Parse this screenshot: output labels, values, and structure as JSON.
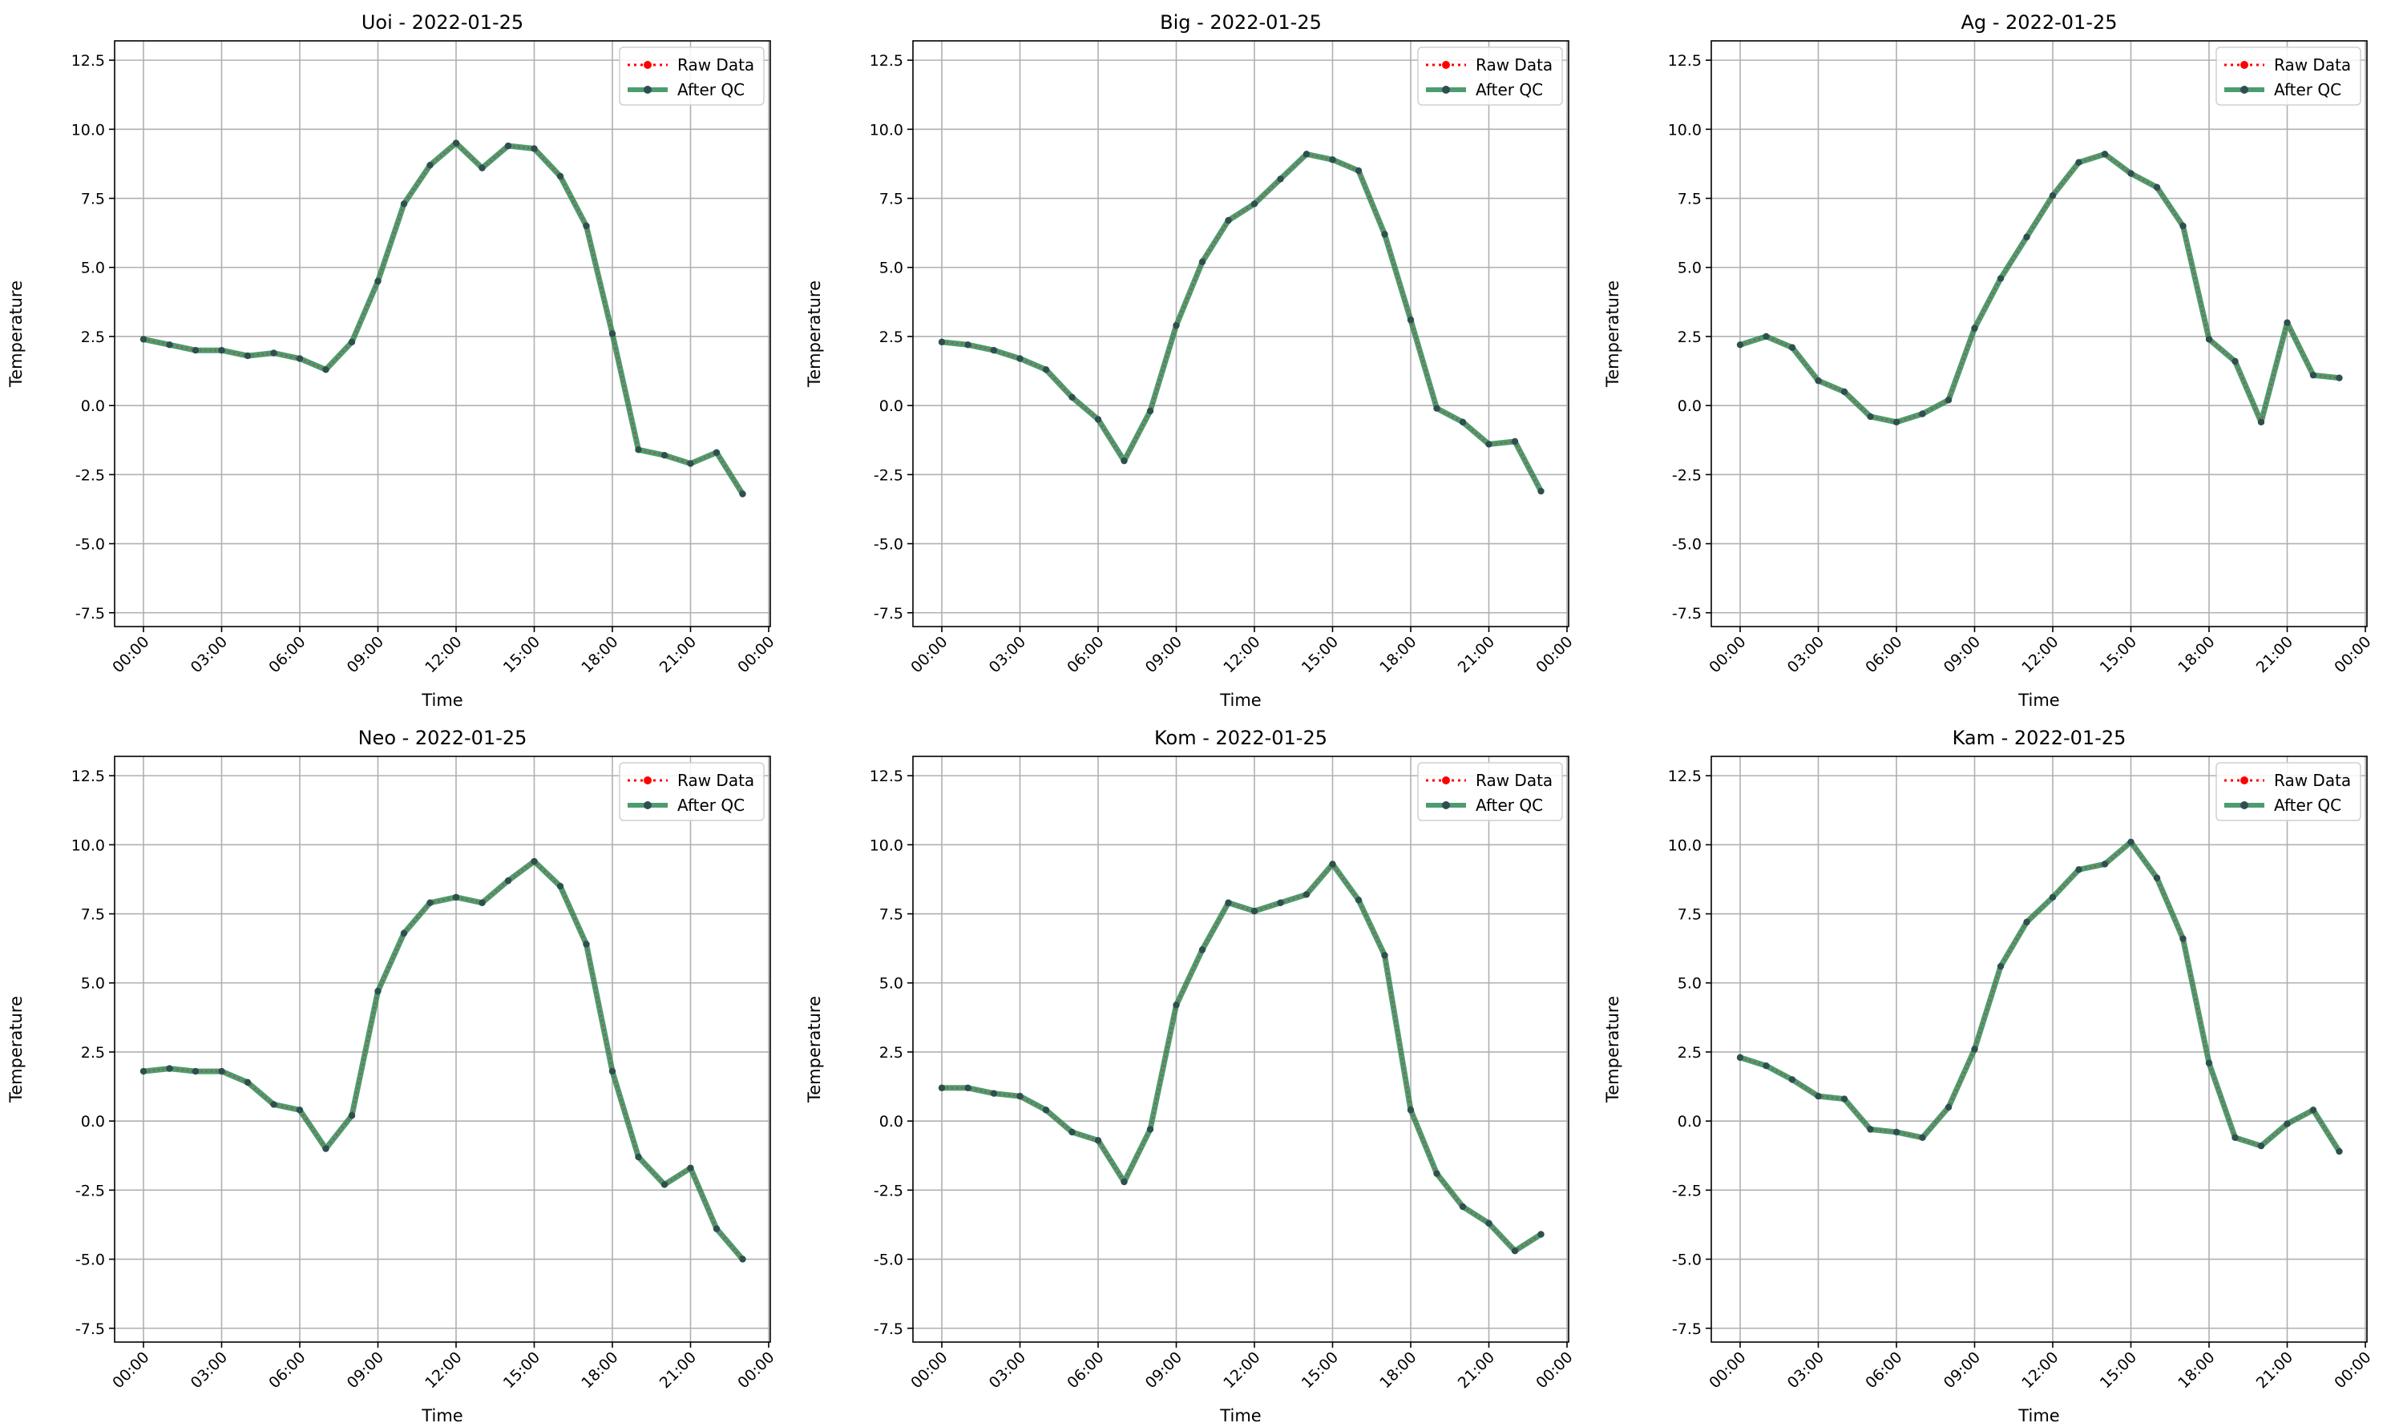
{
  "colors": {
    "raw": "#ff0000",
    "qc": "#2e8b57",
    "grid": "#b0b0b0",
    "axes": "#000000",
    "marker": "#2f4f4f"
  },
  "chart_data": [
    {
      "type": "line",
      "title": "Uoi - 2022-01-25",
      "xlabel": "Time",
      "ylabel": "Temperature",
      "ylim": [
        -8.0,
        13.2
      ],
      "yticks": [
        "-7.5",
        "-5.0",
        "-2.5",
        "0.0",
        "2.5",
        "5.0",
        "7.5",
        "10.0",
        "12.5"
      ],
      "xticks": [
        "00:00",
        "03:00",
        "06:00",
        "09:00",
        "12:00",
        "15:00",
        "18:00",
        "21:00",
        "00:00"
      ],
      "grid": true,
      "legend_position": "upper right",
      "x": [
        "00:00",
        "01:00",
        "02:00",
        "03:00",
        "04:00",
        "05:00",
        "06:00",
        "07:00",
        "08:00",
        "09:00",
        "10:00",
        "11:00",
        "12:00",
        "13:00",
        "14:00",
        "15:00",
        "16:00",
        "17:00",
        "18:00",
        "19:00",
        "20:00",
        "21:00",
        "22:00",
        "23:00"
      ],
      "series": [
        {
          "name": "Raw Data",
          "values": [
            2.4,
            2.2,
            2.0,
            2.0,
            1.8,
            1.9,
            1.7,
            1.3,
            2.3,
            4.5,
            7.3,
            8.7,
            9.5,
            8.6,
            9.4,
            9.3,
            8.3,
            6.5,
            2.6,
            -1.6,
            -1.8,
            -2.1,
            -1.7,
            -3.2
          ]
        },
        {
          "name": "After QC",
          "values": [
            2.4,
            2.2,
            2.0,
            2.0,
            1.8,
            1.9,
            1.7,
            1.3,
            2.3,
            4.5,
            7.3,
            8.7,
            9.5,
            8.6,
            9.4,
            9.3,
            8.3,
            6.5,
            2.6,
            -1.6,
            -1.8,
            -2.1,
            -1.7,
            -3.2
          ]
        }
      ]
    },
    {
      "type": "line",
      "title": "Big - 2022-01-25",
      "xlabel": "Time",
      "ylabel": "Temperature",
      "ylim": [
        -8.0,
        13.2
      ],
      "yticks": [
        "-7.5",
        "-5.0",
        "-2.5",
        "0.0",
        "2.5",
        "5.0",
        "7.5",
        "10.0",
        "12.5"
      ],
      "xticks": [
        "00:00",
        "03:00",
        "06:00",
        "09:00",
        "12:00",
        "15:00",
        "18:00",
        "21:00",
        "00:00"
      ],
      "grid": true,
      "legend_position": "upper right",
      "x": [
        "00:00",
        "01:00",
        "02:00",
        "03:00",
        "04:00",
        "05:00",
        "06:00",
        "07:00",
        "08:00",
        "09:00",
        "10:00",
        "11:00",
        "12:00",
        "13:00",
        "14:00",
        "15:00",
        "16:00",
        "17:00",
        "18:00",
        "19:00",
        "20:00",
        "21:00",
        "22:00",
        "23:00"
      ],
      "series": [
        {
          "name": "Raw Data",
          "values": [
            2.3,
            2.2,
            2.0,
            1.7,
            1.3,
            0.3,
            -0.5,
            -2.0,
            -0.2,
            2.9,
            5.2,
            6.7,
            7.3,
            8.2,
            9.1,
            8.9,
            8.5,
            6.2,
            3.1,
            -0.1,
            -0.6,
            -1.4,
            -1.3,
            -3.1
          ]
        },
        {
          "name": "After QC",
          "values": [
            2.3,
            2.2,
            2.0,
            1.7,
            1.3,
            0.3,
            -0.5,
            -2.0,
            -0.2,
            2.9,
            5.2,
            6.7,
            7.3,
            8.2,
            9.1,
            8.9,
            8.5,
            6.2,
            3.1,
            -0.1,
            -0.6,
            -1.4,
            -1.3,
            -3.1
          ]
        }
      ]
    },
    {
      "type": "line",
      "title": "Ag - 2022-01-25",
      "xlabel": "Time",
      "ylabel": "Temperature",
      "ylim": [
        -8.0,
        13.2
      ],
      "yticks": [
        "-7.5",
        "-5.0",
        "-2.5",
        "0.0",
        "2.5",
        "5.0",
        "7.5",
        "10.0",
        "12.5"
      ],
      "xticks": [
        "00:00",
        "03:00",
        "06:00",
        "09:00",
        "12:00",
        "15:00",
        "18:00",
        "21:00",
        "00:00"
      ],
      "grid": true,
      "legend_position": "upper right",
      "x": [
        "00:00",
        "01:00",
        "02:00",
        "03:00",
        "04:00",
        "05:00",
        "06:00",
        "07:00",
        "08:00",
        "09:00",
        "10:00",
        "11:00",
        "12:00",
        "13:00",
        "14:00",
        "15:00",
        "16:00",
        "17:00",
        "18:00",
        "19:00",
        "20:00",
        "21:00",
        "22:00",
        "23:00"
      ],
      "series": [
        {
          "name": "Raw Data",
          "values": [
            2.2,
            2.5,
            2.1,
            0.9,
            0.5,
            -0.4,
            -0.6,
            -0.3,
            0.2,
            2.8,
            4.6,
            6.1,
            7.6,
            8.8,
            9.1,
            8.4,
            7.9,
            6.5,
            2.4,
            1.6,
            -0.6,
            3.0,
            1.1,
            1.0
          ]
        },
        {
          "name": "After QC",
          "values": [
            2.2,
            2.5,
            2.1,
            0.9,
            0.5,
            -0.4,
            -0.6,
            -0.3,
            0.2,
            2.8,
            4.6,
            6.1,
            7.6,
            8.8,
            9.1,
            8.4,
            7.9,
            6.5,
            2.4,
            1.6,
            -0.6,
            3.0,
            1.1,
            1.0
          ]
        }
      ]
    },
    {
      "type": "line",
      "title": "Neo - 2022-01-25",
      "xlabel": "Time",
      "ylabel": "Temperature",
      "ylim": [
        -8.0,
        13.2
      ],
      "yticks": [
        "-7.5",
        "-5.0",
        "-2.5",
        "0.0",
        "2.5",
        "5.0",
        "7.5",
        "10.0",
        "12.5"
      ],
      "xticks": [
        "00:00",
        "03:00",
        "06:00",
        "09:00",
        "12:00",
        "15:00",
        "18:00",
        "21:00",
        "00:00"
      ],
      "grid": true,
      "legend_position": "upper right",
      "x": [
        "00:00",
        "01:00",
        "02:00",
        "03:00",
        "04:00",
        "05:00",
        "06:00",
        "07:00",
        "08:00",
        "09:00",
        "10:00",
        "11:00",
        "12:00",
        "13:00",
        "14:00",
        "15:00",
        "16:00",
        "17:00",
        "18:00",
        "19:00",
        "20:00",
        "21:00",
        "22:00",
        "23:00"
      ],
      "series": [
        {
          "name": "Raw Data",
          "values": [
            1.8,
            1.9,
            1.8,
            1.8,
            1.4,
            0.6,
            0.4,
            -1.0,
            0.2,
            4.7,
            6.8,
            7.9,
            8.1,
            7.9,
            8.7,
            9.4,
            8.5,
            6.4,
            1.8,
            -1.3,
            -2.3,
            -1.7,
            -3.9,
            -5.0
          ]
        },
        {
          "name": "After QC",
          "values": [
            1.8,
            1.9,
            1.8,
            1.8,
            1.4,
            0.6,
            0.4,
            -1.0,
            0.2,
            4.7,
            6.8,
            7.9,
            8.1,
            7.9,
            8.7,
            9.4,
            8.5,
            6.4,
            1.8,
            -1.3,
            -2.3,
            -1.7,
            -3.9,
            -5.0
          ]
        }
      ]
    },
    {
      "type": "line",
      "title": "Kom - 2022-01-25",
      "xlabel": "Time",
      "ylabel": "Temperature",
      "ylim": [
        -8.0,
        13.2
      ],
      "yticks": [
        "-7.5",
        "-5.0",
        "-2.5",
        "0.0",
        "2.5",
        "5.0",
        "7.5",
        "10.0",
        "12.5"
      ],
      "xticks": [
        "00:00",
        "03:00",
        "06:00",
        "09:00",
        "12:00",
        "15:00",
        "18:00",
        "21:00",
        "00:00"
      ],
      "grid": true,
      "legend_position": "upper right",
      "x": [
        "00:00",
        "01:00",
        "02:00",
        "03:00",
        "04:00",
        "05:00",
        "06:00",
        "07:00",
        "08:00",
        "09:00",
        "10:00",
        "11:00",
        "12:00",
        "13:00",
        "14:00",
        "15:00",
        "16:00",
        "17:00",
        "18:00",
        "19:00",
        "20:00",
        "21:00",
        "22:00",
        "23:00"
      ],
      "series": [
        {
          "name": "Raw Data",
          "values": [
            1.2,
            1.2,
            1.0,
            0.9,
            0.4,
            -0.4,
            -0.7,
            -2.2,
            -0.3,
            4.2,
            6.2,
            7.9,
            7.6,
            7.9,
            8.2,
            9.3,
            8.0,
            6.0,
            0.4,
            -1.9,
            -3.1,
            -3.7,
            -4.7,
            -4.1
          ]
        },
        {
          "name": "After QC",
          "values": [
            1.2,
            1.2,
            1.0,
            0.9,
            0.4,
            -0.4,
            -0.7,
            -2.2,
            -0.3,
            4.2,
            6.2,
            7.9,
            7.6,
            7.9,
            8.2,
            9.3,
            8.0,
            6.0,
            0.4,
            -1.9,
            -3.1,
            -3.7,
            -4.7,
            -4.1
          ]
        }
      ]
    },
    {
      "type": "line",
      "title": "Kam - 2022-01-25",
      "xlabel": "Time",
      "ylabel": "Temperature",
      "ylim": [
        -8.0,
        13.2
      ],
      "yticks": [
        "-7.5",
        "-5.0",
        "-2.5",
        "0.0",
        "2.5",
        "5.0",
        "7.5",
        "10.0",
        "12.5"
      ],
      "xticks": [
        "00:00",
        "03:00",
        "06:00",
        "09:00",
        "12:00",
        "15:00",
        "18:00",
        "21:00",
        "00:00"
      ],
      "grid": true,
      "legend_position": "upper right",
      "x": [
        "00:00",
        "01:00",
        "02:00",
        "03:00",
        "04:00",
        "05:00",
        "06:00",
        "07:00",
        "08:00",
        "09:00",
        "10:00",
        "11:00",
        "12:00",
        "13:00",
        "14:00",
        "15:00",
        "16:00",
        "17:00",
        "18:00",
        "19:00",
        "20:00",
        "21:00",
        "22:00",
        "23:00"
      ],
      "series": [
        {
          "name": "Raw Data",
          "values": [
            2.3,
            2.0,
            1.5,
            0.9,
            0.8,
            -0.3,
            -0.4,
            -0.6,
            0.5,
            2.6,
            5.6,
            7.2,
            8.1,
            9.1,
            9.3,
            10.1,
            8.8,
            6.6,
            2.1,
            -0.6,
            -0.9,
            -0.1,
            0.4,
            -1.1
          ]
        },
        {
          "name": "After QC",
          "values": [
            2.3,
            2.0,
            1.5,
            0.9,
            0.8,
            -0.3,
            -0.4,
            -0.6,
            0.5,
            2.6,
            5.6,
            7.2,
            8.1,
            9.1,
            9.3,
            10.1,
            8.8,
            6.6,
            2.1,
            -0.6,
            -0.9,
            -0.1,
            0.4,
            -1.1
          ]
        }
      ]
    }
  ]
}
